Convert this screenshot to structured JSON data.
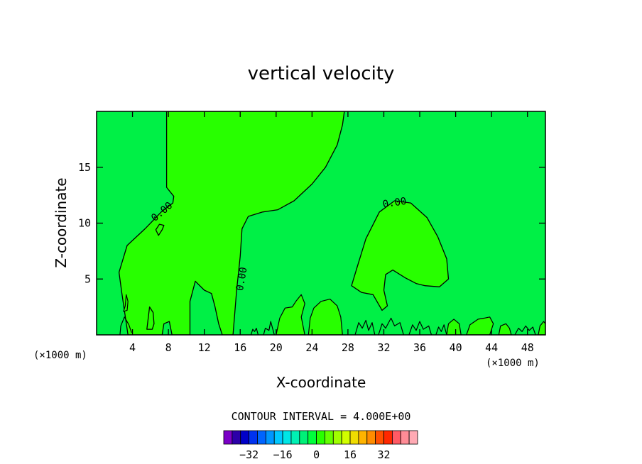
{
  "chart_data": {
    "type": "contour",
    "title": "vertical velocity",
    "xlabel": "X-coordinate",
    "ylabel": "Z-coordinate",
    "x_unit": "(×1000 m)",
    "y_unit": "(×1000 m)",
    "xlim": [
      0,
      50
    ],
    "ylim": [
      0,
      20
    ],
    "x_ticks": [
      4,
      8,
      12,
      16,
      20,
      24,
      28,
      32,
      36,
      40,
      44,
      48
    ],
    "y_ticks": [
      5,
      10,
      15
    ],
    "contour_interval_label": "CONTOUR INTERVAL = 4.000E+00",
    "contour_labels": [
      {
        "text": "0.00",
        "x": 7.3,
        "y": 11.0,
        "angle": -40
      },
      {
        "text": "0.00",
        "x": 16.2,
        "y": 5.0,
        "angle": -80
      },
      {
        "text": "0.00",
        "x": 33.2,
        "y": 11.8,
        "angle": -8
      }
    ],
    "regions": [
      {
        "name": "upper positive plume",
        "sign": "positive",
        "boundary": [
          [
            7.8,
            20
          ],
          [
            7.8,
            13.2
          ],
          [
            8.6,
            12.4
          ],
          [
            8.5,
            11.8
          ],
          [
            7.2,
            11.0
          ],
          [
            5.4,
            9.5
          ],
          [
            3.4,
            8.0
          ],
          [
            2.5,
            5.6
          ],
          [
            2.8,
            3.8
          ],
          [
            3.5,
            0
          ],
          [
            7.3,
            0
          ],
          [
            7.5,
            1.0
          ],
          [
            8.1,
            1.2
          ],
          [
            8.4,
            0
          ],
          [
            10.4,
            0
          ],
          [
            10.4,
            3.0
          ],
          [
            11.0,
            4.8
          ],
          [
            12.0,
            4.0
          ],
          [
            12.8,
            3.7
          ],
          [
            13.2,
            2.5
          ],
          [
            13.6,
            1.0
          ],
          [
            14.0,
            0
          ],
          [
            15.2,
            0
          ],
          [
            15.6,
            4.0
          ],
          [
            16.0,
            7.0
          ],
          [
            16.2,
            9.5
          ],
          [
            16.9,
            10.6
          ],
          [
            18.5,
            11.0
          ],
          [
            20.2,
            11.2
          ],
          [
            22.0,
            12.0
          ],
          [
            24.0,
            13.5
          ],
          [
            25.5,
            15.0
          ],
          [
            26.8,
            17.0
          ],
          [
            27.4,
            18.8
          ],
          [
            27.6,
            20
          ]
        ]
      },
      {
        "name": "mid-level positive blob",
        "sign": "positive",
        "boundary": [
          [
            28.4,
            4.4
          ],
          [
            29.0,
            6.0
          ],
          [
            30.0,
            8.6
          ],
          [
            31.5,
            11.0
          ],
          [
            33.2,
            12.0
          ],
          [
            35.0,
            11.8
          ],
          [
            36.8,
            10.5
          ],
          [
            38.0,
            8.8
          ],
          [
            39.0,
            6.8
          ],
          [
            39.2,
            5.0
          ],
          [
            38.2,
            4.3
          ],
          [
            36.6,
            4.4
          ],
          [
            35.6,
            4.6
          ],
          [
            34.4,
            5.1
          ],
          [
            33.0,
            5.8
          ],
          [
            32.2,
            5.4
          ],
          [
            32.0,
            4.0
          ],
          [
            32.4,
            2.6
          ],
          [
            31.8,
            2.2
          ],
          [
            30.8,
            3.6
          ],
          [
            29.5,
            3.8
          ]
        ]
      },
      {
        "name": "small closed contour near x=7",
        "sign": "positive",
        "boundary": [
          [
            6.9,
            8.9
          ],
          [
            7.3,
            9.4
          ],
          [
            7.5,
            9.8
          ],
          [
            7.0,
            9.9
          ],
          [
            6.6,
            9.4
          ]
        ]
      },
      {
        "name": "near-surface contour at x=6",
        "sign": "positive",
        "boundary": [
          [
            5.6,
            0.5
          ],
          [
            5.8,
            1.8
          ],
          [
            5.9,
            2.5
          ],
          [
            6.3,
            2.0
          ],
          [
            6.4,
            1.0
          ],
          [
            6.2,
            0.5
          ]
        ]
      }
    ],
    "surface_features": [
      {
        "type": "closed",
        "points": [
          [
            3.0,
            2.1
          ],
          [
            3.2,
            2.6
          ],
          [
            3.3,
            3.6
          ],
          [
            3.5,
            3.0
          ],
          [
            3.4,
            2.2
          ]
        ]
      },
      {
        "type": "closed",
        "points": [
          [
            20.0,
            0
          ],
          [
            20.4,
            1.5
          ],
          [
            21.0,
            2.4
          ],
          [
            21.8,
            2.5
          ],
          [
            22.2,
            3.0
          ],
          [
            22.8,
            3.6
          ],
          [
            23.2,
            2.8
          ],
          [
            22.8,
            1.6
          ],
          [
            23.2,
            0
          ]
        ]
      },
      {
        "type": "closed",
        "points": [
          [
            23.6,
            0
          ],
          [
            23.8,
            1.5
          ],
          [
            24.2,
            2.4
          ],
          [
            25.0,
            3.0
          ],
          [
            26.0,
            3.2
          ],
          [
            26.8,
            2.6
          ],
          [
            27.2,
            1.6
          ],
          [
            27.4,
            0
          ]
        ]
      },
      {
        "type": "closed",
        "points": [
          [
            39.0,
            0
          ],
          [
            39.2,
            1.0
          ],
          [
            39.8,
            1.4
          ],
          [
            40.4,
            1.0
          ],
          [
            40.6,
            0
          ]
        ]
      },
      {
        "type": "closed",
        "points": [
          [
            41.2,
            0
          ],
          [
            41.6,
            0.9
          ],
          [
            42.5,
            1.4
          ],
          [
            43.2,
            1.5
          ],
          [
            43.8,
            1.6
          ],
          [
            44.2,
            1.0
          ],
          [
            43.8,
            0
          ]
        ]
      },
      {
        "type": "closed",
        "points": [
          [
            44.8,
            0
          ],
          [
            45.0,
            0.8
          ],
          [
            45.6,
            1.0
          ],
          [
            46.0,
            0.6
          ],
          [
            46.2,
            0
          ]
        ]
      },
      {
        "type": "closed",
        "points": [
          [
            49.2,
            0
          ],
          [
            49.4,
            0.8
          ],
          [
            49.8,
            1.2
          ],
          [
            50,
            1.0
          ],
          [
            50,
            0
          ]
        ]
      },
      {
        "type": "open",
        "points": [
          [
            2.6,
            0
          ],
          [
            2.7,
            0.8
          ],
          [
            3.1,
            1.6
          ],
          [
            3.6,
            0.9
          ],
          [
            3.9,
            0.2
          ]
        ]
      },
      {
        "type": "open",
        "points": [
          [
            17.2,
            0
          ],
          [
            17.4,
            0.5
          ],
          [
            17.6,
            0.3
          ],
          [
            17.8,
            0.6
          ],
          [
            18.0,
            0
          ]
        ]
      },
      {
        "type": "open",
        "points": [
          [
            18.6,
            0
          ],
          [
            18.8,
            0.6
          ],
          [
            19.2,
            0.4
          ],
          [
            19.4,
            1.2
          ],
          [
            19.8,
            0
          ]
        ]
      },
      {
        "type": "open",
        "points": [
          [
            28.8,
            0
          ],
          [
            29.2,
            1.1
          ],
          [
            29.6,
            0.6
          ],
          [
            30.0,
            1.3
          ],
          [
            30.3,
            0.4
          ],
          [
            30.7,
            1.1
          ],
          [
            31.0,
            0
          ]
        ]
      },
      {
        "type": "open",
        "points": [
          [
            31.4,
            0
          ],
          [
            31.8,
            1.0
          ],
          [
            32.2,
            0.6
          ],
          [
            32.8,
            1.5
          ],
          [
            33.2,
            0.8
          ],
          [
            33.8,
            1.1
          ],
          [
            34.2,
            0
          ]
        ]
      },
      {
        "type": "open",
        "points": [
          [
            34.8,
            0
          ],
          [
            35.2,
            0.9
          ],
          [
            35.6,
            0.4
          ],
          [
            36.0,
            1.2
          ],
          [
            36.4,
            0.5
          ],
          [
            37.0,
            0.8
          ],
          [
            37.3,
            0
          ]
        ]
      },
      {
        "type": "open",
        "points": [
          [
            37.8,
            0
          ],
          [
            38.1,
            0.7
          ],
          [
            38.4,
            0.3
          ],
          [
            38.7,
            0.9
          ],
          [
            39.0,
            0
          ]
        ]
      },
      {
        "type": "open",
        "points": [
          [
            46.6,
            0
          ],
          [
            47.0,
            0.6
          ],
          [
            47.4,
            0.3
          ],
          [
            47.8,
            0.8
          ],
          [
            48.2,
            0.4
          ],
          [
            48.6,
            0.7
          ],
          [
            48.9,
            0
          ]
        ]
      }
    ],
    "colorbar": {
      "colors": [
        "#7a00c6",
        "#2c00a8",
        "#0000c8",
        "#0032f0",
        "#0064ff",
        "#0096ff",
        "#00c8ff",
        "#00e6e6",
        "#00f0b4",
        "#00f078",
        "#00ff3c",
        "#28ff00",
        "#64ff00",
        "#a0ff00",
        "#d2ff00",
        "#f0dc00",
        "#ffb400",
        "#ff8c00",
        "#ff5000",
        "#ff2800",
        "#ff5a64",
        "#ff8c96",
        "#ffaab4"
      ],
      "labels": [
        "-32",
        "-16",
        "0",
        "16",
        "32"
      ],
      "label_values": [
        -32,
        -16,
        0,
        16,
        32
      ],
      "range": [
        -44,
        48
      ]
    },
    "background_color": "#00f046",
    "positive_fill_color": "#28ff00"
  }
}
